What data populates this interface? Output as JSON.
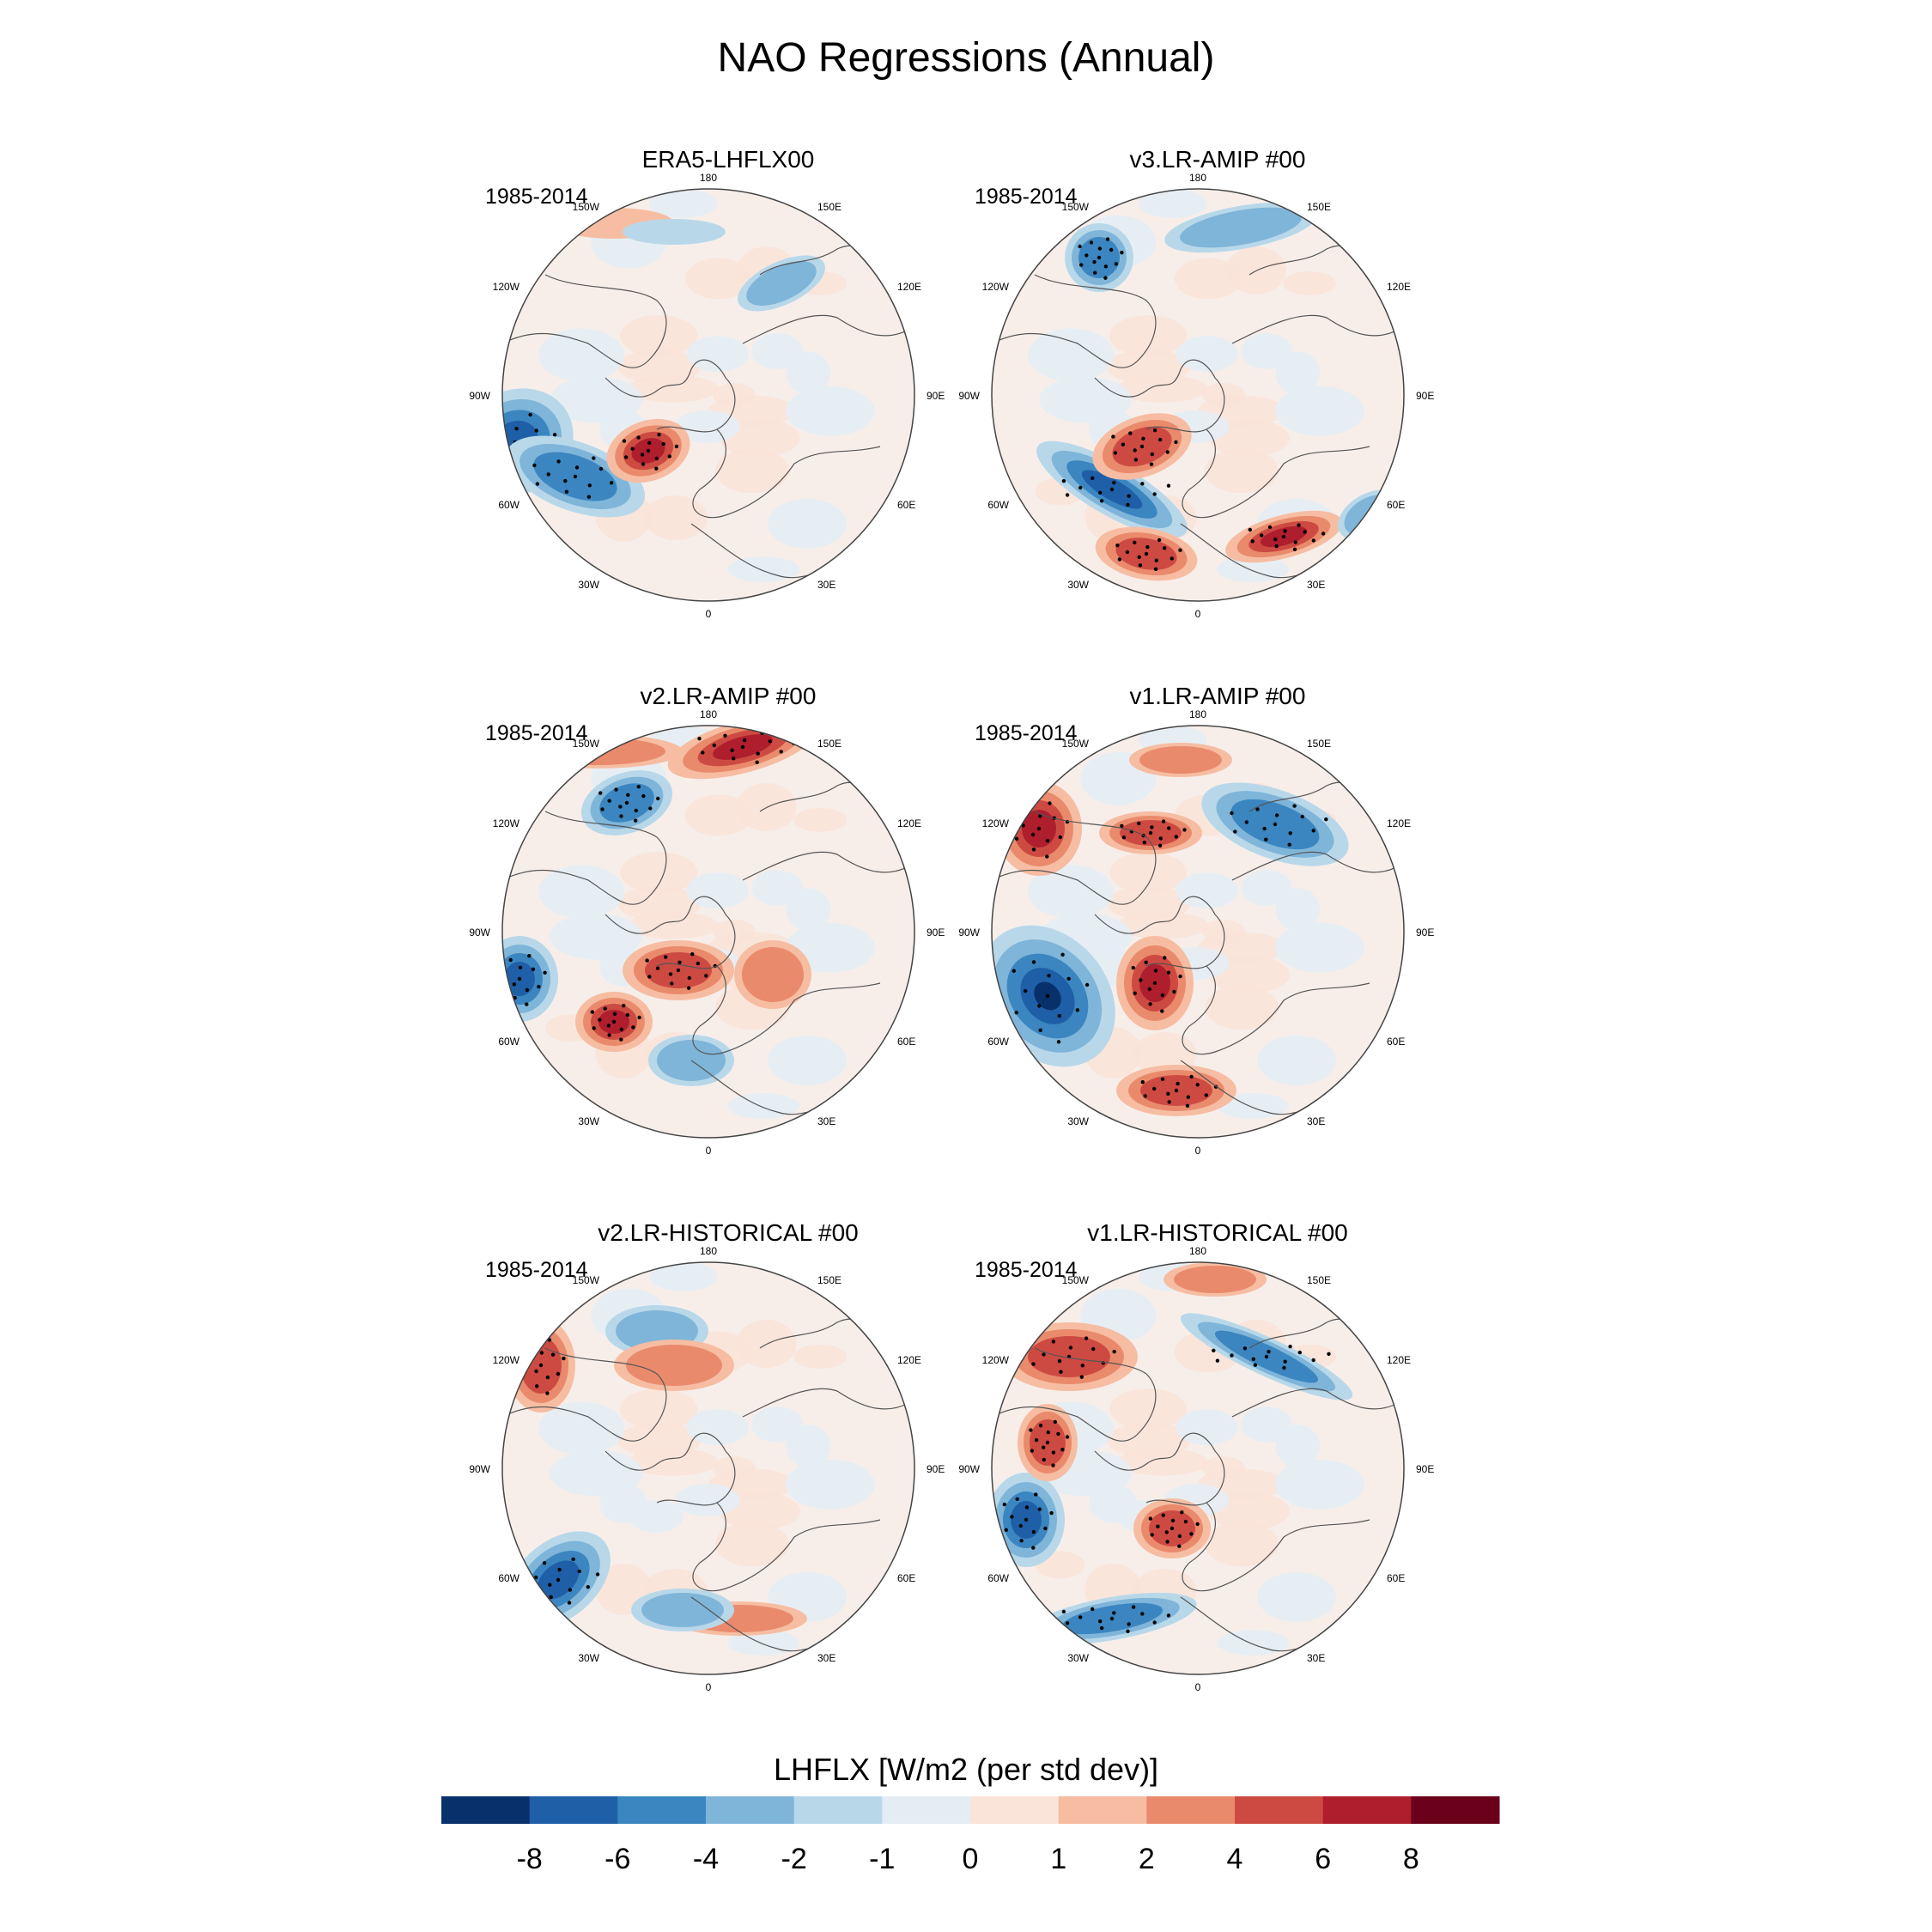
{
  "title": "NAO Regressions (Annual)",
  "panels": [
    {
      "title": "ERA5-LHFLX00",
      "period": "1985-2014"
    },
    {
      "title": "v3.LR-AMIP  #00",
      "period": "1985-2014"
    },
    {
      "title": "v2.LR-AMIP  #00",
      "period": "1985-2014"
    },
    {
      "title": "v1.LR-AMIP  #00",
      "period": "1985-2014"
    },
    {
      "title": "v2.LR-HISTORICAL  #00",
      "period": "1985-2014"
    },
    {
      "title": "v1.LR-HISTORICAL  #00",
      "period": "1985-2014"
    }
  ],
  "longitude_labels": [
    "180",
    "150E",
    "120E",
    "90E",
    "60E",
    "30E",
    "0",
    "30W",
    "60W",
    "90W",
    "120W",
    "150W"
  ],
  "colorbar": {
    "title": "LHFLX [W/m2 (per std dev)]",
    "tick_labels": [
      "-8",
      "-6",
      "-4",
      "-2",
      "-1",
      "0",
      "1",
      "2",
      "4",
      "6",
      "8"
    ],
    "colors": [
      "#08306b",
      "#1f5fa8",
      "#3b86c0",
      "#7fb5d9",
      "#b8d8ea",
      "#e4edf4",
      "#fae3d9",
      "#f6bda2",
      "#ea8a6c",
      "#cd4a42",
      "#ae1e2d",
      "#6a0019"
    ]
  },
  "palette": {
    "land_outline": "#555555",
    "map_border": "#444444",
    "stipple": "#000000"
  }
}
